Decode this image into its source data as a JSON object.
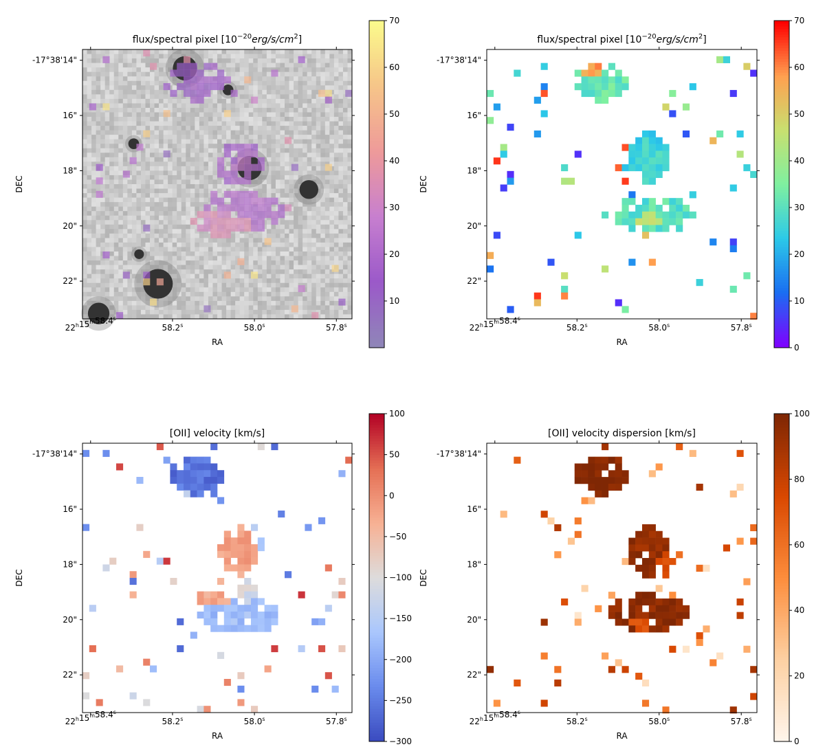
{
  "chart_data": [
    {
      "type": "heatmap",
      "id": "p1",
      "title": "flux/spectral pixel [10",
      "title_sup": "−20",
      "title_unit": "erg/s/cm",
      "title_unit_sup": "2",
      "title_close": "]",
      "background": "greyscale-image",
      "colormap": "purple-orange-yellow",
      "cmap_stops": [
        "#8f86b8",
        "#9b59c9",
        "#c77fcf",
        "#ee9a9a",
        "#f6c489",
        "#fbfa8c"
      ],
      "clim": [
        0,
        70
      ],
      "colorbar_ticks": [
        {
          "v": 10,
          "label": "10"
        },
        {
          "v": 20,
          "label": "20"
        },
        {
          "v": 30,
          "label": "30"
        },
        {
          "v": 40,
          "label": "40"
        },
        {
          "v": 50,
          "label": "50"
        },
        {
          "v": 60,
          "label": "60"
        },
        {
          "v": 70,
          "label": "70"
        }
      ],
      "xlabel": "RA",
      "ylabel": "DEC",
      "x_ticks": [
        {
          "v": 0.03,
          "label": "22h15m58.4s"
        },
        {
          "v": 0.334,
          "label": "58.2s"
        },
        {
          "v": 0.638,
          "label": "58.0s"
        },
        {
          "v": 0.942,
          "label": "57.8s"
        }
      ],
      "y_ticks": [
        {
          "v": 0.04,
          "label": "-17°38'14\""
        },
        {
          "v": 0.245,
          "label": "16\""
        },
        {
          "v": 0.45,
          "label": "18\""
        },
        {
          "v": 0.655,
          "label": "20\""
        },
        {
          "v": 0.86,
          "label": "22\""
        }
      ],
      "blobs": [
        {
          "x": 0.6,
          "y": 0.6,
          "rx": 0.14,
          "ry": 0.07,
          "value": 22
        },
        {
          "x": 0.58,
          "y": 0.42,
          "rx": 0.09,
          "ry": 0.08,
          "value": 18
        },
        {
          "x": 0.42,
          "y": 0.12,
          "rx": 0.12,
          "ry": 0.07,
          "value": 15
        },
        {
          "x": 0.52,
          "y": 0.64,
          "rx": 0.12,
          "ry": 0.05,
          "value": 34
        },
        {
          "x": 0.6,
          "y": 0.43,
          "rx": 0.05,
          "ry": 0.05,
          "value": 26
        }
      ],
      "sources": [
        {
          "x": 0.38,
          "y": 0.07,
          "r": 0.045
        },
        {
          "x": 0.54,
          "y": 0.15,
          "r": 0.02
        },
        {
          "x": 0.62,
          "y": 0.44,
          "r": 0.045
        },
        {
          "x": 0.84,
          "y": 0.52,
          "r": 0.035
        },
        {
          "x": 0.28,
          "y": 0.87,
          "r": 0.055
        },
        {
          "x": 0.06,
          "y": 0.98,
          "r": 0.04
        },
        {
          "x": 0.19,
          "y": 0.35,
          "r": 0.02
        },
        {
          "x": 0.21,
          "y": 0.76,
          "r": 0.018
        }
      ]
    },
    {
      "type": "heatmap",
      "id": "p2",
      "title": "flux/spectral pixel [10",
      "title_sup": "−20",
      "title_unit": "erg/s/cm",
      "title_unit_sup": "2",
      "title_close": "]",
      "colormap": "rainbow",
      "cmap_stops": [
        "#7f00ff",
        "#1a6ef2",
        "#2cc9e8",
        "#7ff0a0",
        "#c8e070",
        "#ffa050",
        "#ff0000"
      ],
      "clim": [
        0,
        70
      ],
      "colorbar_ticks": [
        {
          "v": 0,
          "label": "0"
        },
        {
          "v": 10,
          "label": "10"
        },
        {
          "v": 20,
          "label": "20"
        },
        {
          "v": 30,
          "label": "30"
        },
        {
          "v": 40,
          "label": "40"
        },
        {
          "v": 50,
          "label": "50"
        },
        {
          "v": 60,
          "label": "60"
        },
        {
          "v": 70,
          "label": "70"
        }
      ],
      "xlabel": "RA",
      "ylabel": "DEC",
      "x_ticks": [
        {
          "v": 0.03,
          "label": "22h15m58.4s"
        },
        {
          "v": 0.334,
          "label": "58.2s"
        },
        {
          "v": 0.638,
          "label": "58.0s"
        },
        {
          "v": 0.942,
          "label": "57.8s"
        }
      ],
      "y_ticks": [
        {
          "v": 0.04,
          "label": "-17°38'14\""
        },
        {
          "v": 0.245,
          "label": "16\""
        },
        {
          "v": 0.45,
          "label": "18\""
        },
        {
          "v": 0.655,
          "label": "20\""
        },
        {
          "v": 0.86,
          "label": "22\""
        }
      ],
      "blobs": [
        {
          "x": 0.62,
          "y": 0.61,
          "rx": 0.15,
          "ry": 0.07,
          "value": 30
        },
        {
          "x": 0.6,
          "y": 0.4,
          "rx": 0.07,
          "ry": 0.1,
          "value": 26
        },
        {
          "x": 0.42,
          "y": 0.12,
          "rx": 0.1,
          "ry": 0.07,
          "value": 32
        },
        {
          "x": 0.6,
          "y": 0.63,
          "rx": 0.06,
          "ry": 0.03,
          "value": 44
        },
        {
          "x": 0.39,
          "y": 0.08,
          "rx": 0.03,
          "ry": 0.03,
          "value": 58
        }
      ]
    },
    {
      "type": "heatmap",
      "id": "p3",
      "title": "[OII] velocity [km/s]",
      "colormap": "coolwarm",
      "cmap_stops": [
        "#3b4cc0",
        "#6a8ced",
        "#aac7fd",
        "#dddcdc",
        "#f7b194",
        "#e57055",
        "#b40426"
      ],
      "clim": [
        -300,
        100
      ],
      "colorbar_ticks": [
        {
          "v": -300,
          "label": "−300"
        },
        {
          "v": -250,
          "label": "−250"
        },
        {
          "v": -200,
          "label": "−200"
        },
        {
          "v": -150,
          "label": "−150"
        },
        {
          "v": -100,
          "label": "−100"
        },
        {
          "v": -50,
          "label": "−50"
        },
        {
          "v": 0,
          "label": "0"
        },
        {
          "v": 50,
          "label": "50"
        },
        {
          "v": 100,
          "label": "100"
        }
      ],
      "xlabel": "RA",
      "ylabel": "DEC",
      "x_ticks": [
        {
          "v": 0.03,
          "label": "22h15m58.4s"
        },
        {
          "v": 0.334,
          "label": "58.2s"
        },
        {
          "v": 0.638,
          "label": "58.0s"
        },
        {
          "v": 0.942,
          "label": "57.8s"
        }
      ],
      "y_ticks": [
        {
          "v": 0.04,
          "label": "-17°38'14\""
        },
        {
          "v": 0.245,
          "label": "16\""
        },
        {
          "v": 0.45,
          "label": "18\""
        },
        {
          "v": 0.655,
          "label": "20\""
        },
        {
          "v": 0.86,
          "label": "22\""
        }
      ],
      "blobs": [
        {
          "x": 0.58,
          "y": 0.64,
          "rx": 0.15,
          "ry": 0.07,
          "value": -175
        },
        {
          "x": 0.58,
          "y": 0.4,
          "rx": 0.07,
          "ry": 0.09,
          "value": -20
        },
        {
          "x": 0.42,
          "y": 0.12,
          "rx": 0.1,
          "ry": 0.07,
          "value": -260
        },
        {
          "x": 0.48,
          "y": 0.58,
          "rx": 0.06,
          "ry": 0.03,
          "value": -30
        },
        {
          "x": 0.61,
          "y": 0.55,
          "rx": 0.04,
          "ry": 0.04,
          "value": -110
        }
      ]
    },
    {
      "type": "heatmap",
      "id": "p4",
      "title": "[OII] velocity dispersion [km/s]",
      "colormap": "oranges",
      "cmap_stops": [
        "#fff5eb",
        "#fdd0a2",
        "#fd8d3c",
        "#d94801",
        "#7f2704"
      ],
      "clim": [
        0,
        100
      ],
      "colorbar_ticks": [
        {
          "v": 0,
          "label": "0"
        },
        {
          "v": 20,
          "label": "20"
        },
        {
          "v": 40,
          "label": "40"
        },
        {
          "v": 60,
          "label": "60"
        },
        {
          "v": 80,
          "label": "80"
        },
        {
          "v": 100,
          "label": "100"
        }
      ],
      "xlabel": "RA",
      "ylabel": "DEC",
      "x_ticks": [
        {
          "v": 0.03,
          "label": "22h15m58.4s"
        },
        {
          "v": 0.334,
          "label": "58.2s"
        },
        {
          "v": 0.638,
          "label": "58.0s"
        },
        {
          "v": 0.942,
          "label": "57.8s"
        }
      ],
      "y_ticks": [
        {
          "v": 0.04,
          "label": "-17°38'14\""
        },
        {
          "v": 0.245,
          "label": "16\""
        },
        {
          "v": 0.45,
          "label": "18\""
        },
        {
          "v": 0.655,
          "label": "20\""
        },
        {
          "v": 0.86,
          "label": "22\""
        }
      ],
      "blobs": [
        {
          "x": 0.6,
          "y": 0.63,
          "rx": 0.15,
          "ry": 0.07,
          "value": 96
        },
        {
          "x": 0.6,
          "y": 0.4,
          "rx": 0.07,
          "ry": 0.09,
          "value": 94
        },
        {
          "x": 0.42,
          "y": 0.12,
          "rx": 0.1,
          "ry": 0.07,
          "value": 98
        },
        {
          "x": 0.58,
          "y": 0.66,
          "rx": 0.06,
          "ry": 0.03,
          "value": 70
        },
        {
          "x": 0.66,
          "y": 0.44,
          "rx": 0.03,
          "ry": 0.05,
          "value": 75
        }
      ]
    }
  ]
}
